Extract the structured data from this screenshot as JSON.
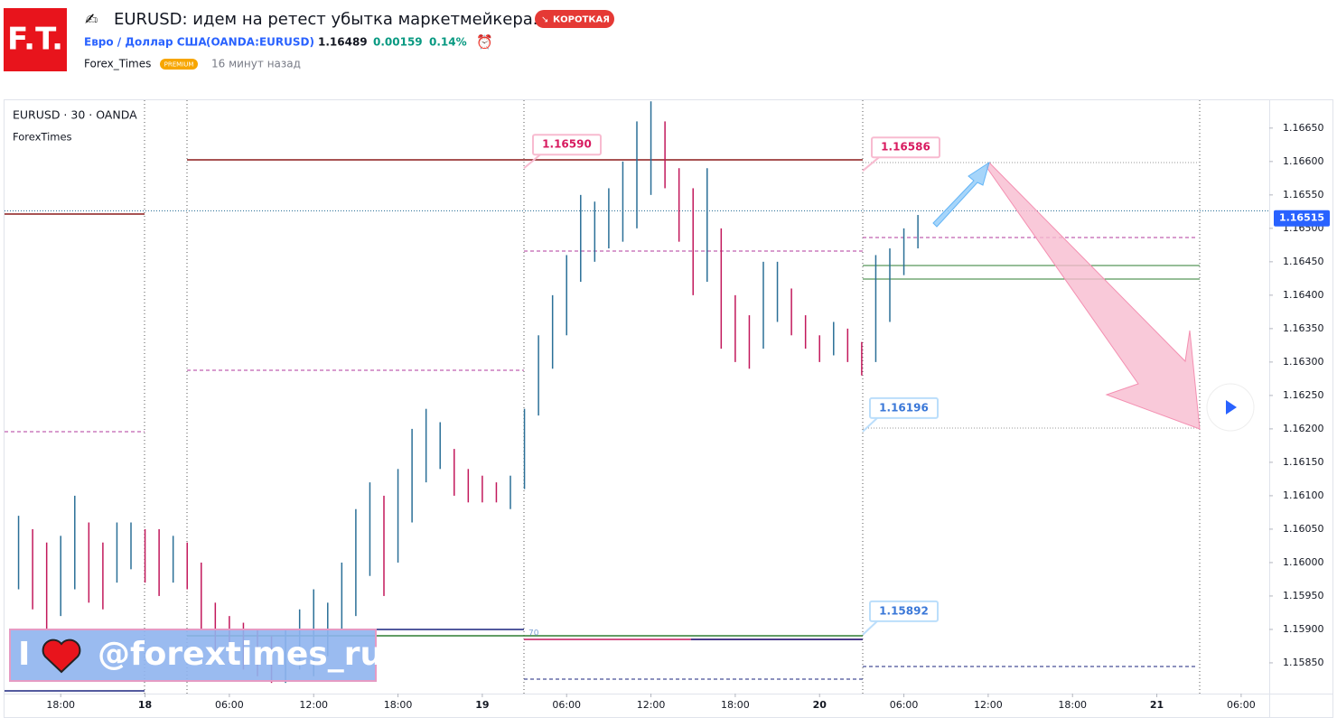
{
  "header": {
    "logo": "F.T.",
    "title": "EURUSD: идем на ретест убытка маркетмейкера.",
    "badge": "КОРОТКАЯ",
    "symbol_name": "Евро / Доллар США",
    "symbol_code": "(OANDA:EURUSD)",
    "price": "1.16489",
    "change": "0.00159",
    "change_pct": "0.14%",
    "author": "Forex_Times",
    "author_badge": "PREMIUM",
    "time_ago": "16 минут назад"
  },
  "chart_data": {
    "type": "ohlc-range",
    "legend": "EURUSD · 30 · OANDA",
    "indicator": "ForexTimes",
    "watermark_i": "I",
    "watermark_handle": "@forextimes_ru",
    "small_label": "70",
    "up_color": "#2a6f97",
    "down_color": "#c2185b",
    "ylim": [
      1.15804,
      1.16693
    ],
    "yticks": [
      {
        "value": 1.1665,
        "label": "1.16650"
      },
      {
        "value": 1.166,
        "label": "1.16600"
      },
      {
        "value": 1.1655,
        "label": "1.16550"
      },
      {
        "value": 1.165,
        "label": "1.16500"
      },
      {
        "value": 1.1645,
        "label": "1.16450"
      },
      {
        "value": 1.164,
        "label": "1.16400"
      },
      {
        "value": 1.1635,
        "label": "1.16350"
      },
      {
        "value": 1.163,
        "label": "1.16300"
      },
      {
        "value": 1.1625,
        "label": "1.16250"
      },
      {
        "value": 1.162,
        "label": "1.16200"
      },
      {
        "value": 1.1615,
        "label": "1.16150"
      },
      {
        "value": 1.161,
        "label": "1.16100"
      },
      {
        "value": 1.1605,
        "label": "1.16050"
      },
      {
        "value": 1.16,
        "label": "1.16000"
      },
      {
        "value": 1.1595,
        "label": "1.15950"
      },
      {
        "value": 1.159,
        "label": "1.15900"
      },
      {
        "value": 1.1585,
        "label": "1.15850"
      }
    ],
    "xlim": [
      -4,
      86
    ],
    "xticks": [
      {
        "value": 0,
        "label": "18:00"
      },
      {
        "value": 6,
        "label": "18"
      },
      {
        "value": 12,
        "label": "06:00"
      },
      {
        "value": 18,
        "label": "12:00"
      },
      {
        "value": 24,
        "label": "18:00"
      },
      {
        "value": 30,
        "label": "19"
      },
      {
        "value": 36,
        "label": "06:00"
      },
      {
        "value": 42,
        "label": "12:00"
      },
      {
        "value": 48,
        "label": "18:00"
      },
      {
        "value": 54,
        "label": "20"
      },
      {
        "value": 60,
        "label": "06:00"
      },
      {
        "value": 66,
        "label": "12:00"
      },
      {
        "value": 72,
        "label": "18:00"
      },
      {
        "value": 78,
        "label": "21"
      },
      {
        "value": 84,
        "label": "06:00"
      }
    ],
    "x": [
      -3,
      -2,
      -1,
      0,
      1,
      2,
      3,
      4,
      5,
      6,
      7,
      8,
      9,
      10,
      11,
      12,
      13,
      14,
      15,
      16,
      17,
      18,
      19,
      20,
      21,
      22,
      23,
      24,
      25,
      26,
      27,
      28,
      29,
      30,
      31,
      32,
      33,
      34,
      35,
      36,
      37,
      38,
      39,
      40,
      41,
      42,
      43,
      44,
      45,
      46,
      47,
      48,
      49,
      50,
      51,
      52,
      53,
      54,
      55,
      56,
      57,
      58,
      59,
      60,
      61
    ],
    "low": [
      1.1596,
      1.1593,
      1.159,
      1.1592,
      1.1596,
      1.1594,
      1.1593,
      1.1597,
      1.1599,
      1.1597,
      1.1595,
      1.1597,
      1.1596,
      1.159,
      1.1586,
      1.1585,
      1.1584,
      1.1583,
      1.1582,
      1.1582,
      1.1584,
      1.1583,
      1.1586,
      1.159,
      1.1592,
      1.1598,
      1.1595,
      1.16,
      1.1606,
      1.1612,
      1.1614,
      1.161,
      1.1609,
      1.1609,
      1.1609,
      1.1608,
      1.1611,
      1.1622,
      1.1629,
      1.1634,
      1.1642,
      1.1645,
      1.1647,
      1.1648,
      1.165,
      1.1655,
      1.1656,
      1.1648,
      1.164,
      1.1642,
      1.1632,
      1.163,
      1.1629,
      1.1632,
      1.1636,
      1.1634,
      1.1632,
      1.163,
      1.1631,
      1.163,
      1.1628,
      1.163,
      1.1636,
      1.1643,
      1.1647
    ],
    "high": [
      1.1607,
      1.1605,
      1.1603,
      1.1604,
      1.161,
      1.1606,
      1.1603,
      1.1606,
      1.1606,
      1.1605,
      1.1605,
      1.1604,
      1.1603,
      1.16,
      1.1594,
      1.1592,
      1.1591,
      1.159,
      1.1589,
      1.159,
      1.1593,
      1.1596,
      1.1594,
      1.16,
      1.1608,
      1.1612,
      1.161,
      1.1614,
      1.162,
      1.1623,
      1.1621,
      1.1617,
      1.1614,
      1.1613,
      1.1612,
      1.1613,
      1.1623,
      1.1634,
      1.164,
      1.1646,
      1.1655,
      1.1654,
      1.1656,
      1.166,
      1.1666,
      1.1669,
      1.1666,
      1.1659,
      1.1656,
      1.1659,
      1.165,
      1.164,
      1.1637,
      1.1645,
      1.1645,
      1.1641,
      1.1637,
      1.1634,
      1.1636,
      1.1635,
      1.1633,
      1.1646,
      1.1647,
      1.165,
      1.1652
    ],
    "price_labels": [
      {
        "value": 1.1659,
        "label": "1.16590"
      },
      {
        "value": 1.16586,
        "label": "1.16586"
      },
      {
        "value": 1.16196,
        "label": "1.16196"
      },
      {
        "value": 1.15892,
        "label": "1.15892"
      }
    ],
    "last_price": 1.16515
  }
}
